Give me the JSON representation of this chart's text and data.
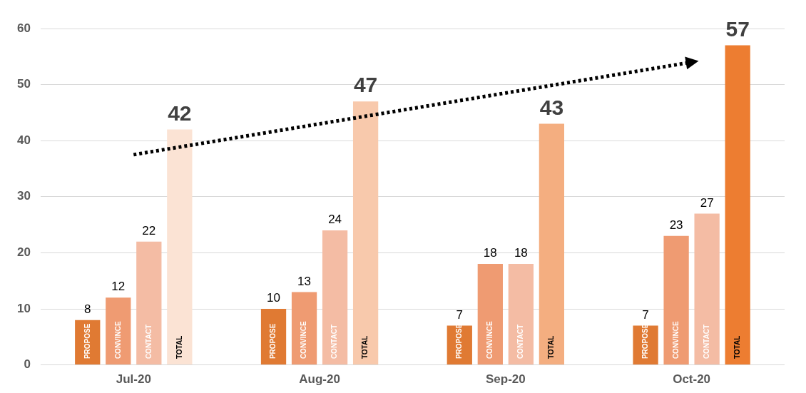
{
  "chart_data": {
    "type": "bar",
    "categories": [
      "Jul-20",
      "Aug-20",
      "Sep-20",
      "Oct-20"
    ],
    "series": [
      {
        "name": "PROPOSE",
        "color": "#e07a33",
        "values": [
          8,
          10,
          7,
          7
        ],
        "value_labels": [
          "8",
          "10",
          "7",
          "7"
        ]
      },
      {
        "name": "CONVINCE",
        "color": "#ef9b72",
        "values": [
          12,
          13,
          18,
          23
        ],
        "value_labels": [
          "12",
          "13",
          "18",
          "23"
        ]
      },
      {
        "name": "CONTACT",
        "color": "#f4bca4",
        "values": [
          22,
          24,
          18,
          27
        ],
        "value_labels": [
          "22",
          "24",
          "18",
          "27"
        ]
      },
      {
        "name": "TOTAL",
        "colors": [
          "#fbe3d4",
          "#f8c9ac",
          "#f4ae80",
          "#ed7d31"
        ],
        "values": [
          42,
          47,
          43,
          57
        ],
        "value_labels": [
          "42",
          "47",
          "43",
          "57"
        ]
      },
      {
        "type": "line",
        "x": [
          "Jul-20",
          "Oct-20"
        ],
        "values": [
          37.5,
          54
        ],
        "color": "#000000",
        "line_style": "dotted"
      }
    ],
    "ylim": [
      0,
      60
    ],
    "yticks": [
      0,
      10,
      20,
      30,
      40,
      50,
      60
    ],
    "grid": "y",
    "legend": false
  }
}
